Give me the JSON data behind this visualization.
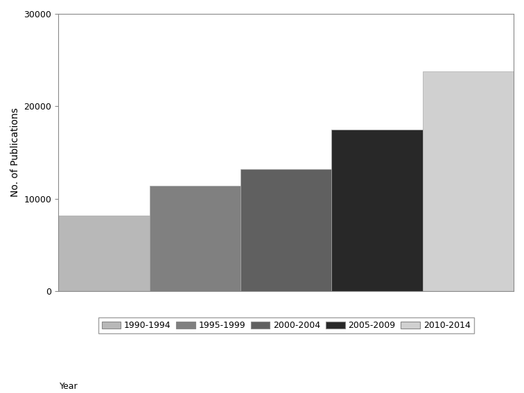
{
  "categories": [
    "1990-1994",
    "1995-1999",
    "2000-2004",
    "2005-2009",
    "2010-2014"
  ],
  "values": [
    8200,
    11400,
    13200,
    17500,
    23800
  ],
  "bar_colors": [
    "#b8b8b8",
    "#808080",
    "#606060",
    "#282828",
    "#d0d0d0"
  ],
  "ylabel": "No. of Publications",
  "ylim": [
    0,
    30000
  ],
  "yticks": [
    0,
    10000,
    20000,
    30000
  ],
  "ytick_labels": [
    "0",
    "10000",
    "20000",
    "30000"
  ],
  "legend_label": "Year",
  "background_color": "#ffffff",
  "bar_edge_color": "#aaaaaa",
  "bar_edge_width": 0.5,
  "figsize": [
    7.56,
    5.67
  ],
  "dpi": 100
}
